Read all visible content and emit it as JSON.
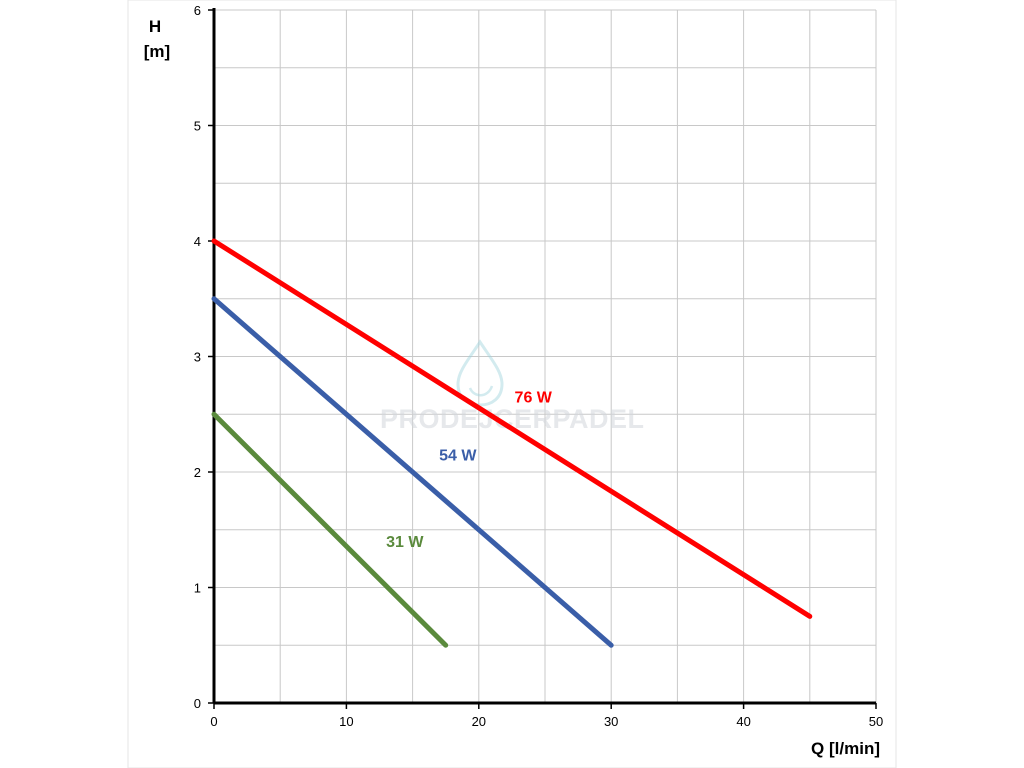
{
  "chart_data": {
    "type": "line",
    "xlabel": "Q [l/min]",
    "ylabel_line1": "H",
    "ylabel_line2": "[m]",
    "xlim": [
      0,
      50
    ],
    "ylim": [
      0,
      6
    ],
    "x_ticks": [
      0,
      10,
      20,
      30,
      40,
      50
    ],
    "y_ticks": [
      0,
      1,
      2,
      3,
      4,
      5,
      6
    ],
    "grid": true,
    "series": [
      {
        "name": "76 W",
        "color": "#ff0000",
        "points": [
          [
            0,
            4.0
          ],
          [
            45,
            0.75
          ]
        ],
        "label_at": [
          22.7,
          2.6
        ]
      },
      {
        "name": "54 W",
        "color": "#3a5ea8",
        "points": [
          [
            0,
            3.5
          ],
          [
            30,
            0.5
          ]
        ],
        "label_at": [
          17.0,
          2.1
        ]
      },
      {
        "name": "31 W",
        "color": "#5a8a3c",
        "points": [
          [
            0,
            2.5
          ],
          [
            17.5,
            0.5
          ]
        ],
        "label_at": [
          13.0,
          1.35
        ]
      }
    ]
  },
  "watermark": {
    "text": "PRODEJCERPADEL",
    "icon": "water-drop-icon"
  }
}
